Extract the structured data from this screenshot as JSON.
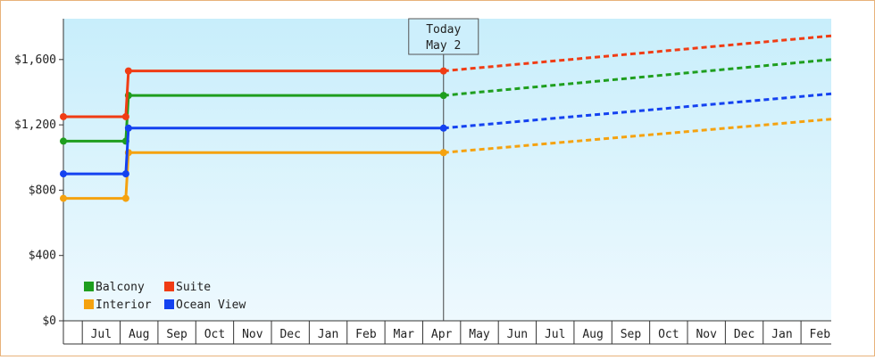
{
  "chart_data": {
    "type": "line",
    "title": "",
    "xlabel": "",
    "ylabel": "",
    "ylim": [
      0,
      1850
    ],
    "y_ticks": [
      {
        "value": 0,
        "label": "$0"
      },
      {
        "value": 400,
        "label": "$400"
      },
      {
        "value": 800,
        "label": "$800"
      },
      {
        "value": 1200,
        "label": "$1,200"
      },
      {
        "value": 1600,
        "label": "$1,600"
      }
    ],
    "x_ticks": [
      "Jul",
      "Aug",
      "Sep",
      "Oct",
      "Nov",
      "Dec",
      "Jan",
      "Feb",
      "Mar",
      "Apr",
      "May",
      "Jun",
      "Jul",
      "Aug",
      "Sep",
      "Oct",
      "Nov",
      "Dec",
      "Jan",
      "Feb"
    ],
    "x_range": [
      0,
      20.3
    ],
    "today_marker": {
      "line1": "Today",
      "line2": "May 2",
      "x": 10.05
    },
    "grid": false,
    "legend_position": "bottom-left",
    "series": [
      {
        "name": "Balcony",
        "color": "#1e9e1e",
        "points": [
          {
            "x": 0,
            "y": 1100
          },
          {
            "x": 1.65,
            "y": 1100
          },
          {
            "x": 1.72,
            "y": 1380
          },
          {
            "x": 10.05,
            "y": 1380
          }
        ],
        "projection": [
          {
            "x": 10.05,
            "y": 1380
          },
          {
            "x": 20.3,
            "y": 1600
          }
        ]
      },
      {
        "name": "Suite",
        "color": "#f03c14",
        "points": [
          {
            "x": 0,
            "y": 1250
          },
          {
            "x": 1.65,
            "y": 1250
          },
          {
            "x": 1.72,
            "y": 1530
          },
          {
            "x": 10.05,
            "y": 1530
          }
        ],
        "projection": [
          {
            "x": 10.05,
            "y": 1530
          },
          {
            "x": 20.3,
            "y": 1745
          }
        ]
      },
      {
        "name": "Interior",
        "color": "#f5a20f",
        "points": [
          {
            "x": 0,
            "y": 750
          },
          {
            "x": 1.65,
            "y": 750
          },
          {
            "x": 1.72,
            "y": 1030
          },
          {
            "x": 10.05,
            "y": 1030
          }
        ],
        "projection": [
          {
            "x": 10.05,
            "y": 1030
          },
          {
            "x": 20.3,
            "y": 1235
          }
        ]
      },
      {
        "name": "Ocean View",
        "color": "#1442f0",
        "points": [
          {
            "x": 0,
            "y": 900
          },
          {
            "x": 1.65,
            "y": 900
          },
          {
            "x": 1.72,
            "y": 1180
          },
          {
            "x": 10.05,
            "y": 1180
          }
        ],
        "projection": [
          {
            "x": 10.05,
            "y": 1180
          },
          {
            "x": 20.3,
            "y": 1390
          }
        ]
      }
    ]
  }
}
